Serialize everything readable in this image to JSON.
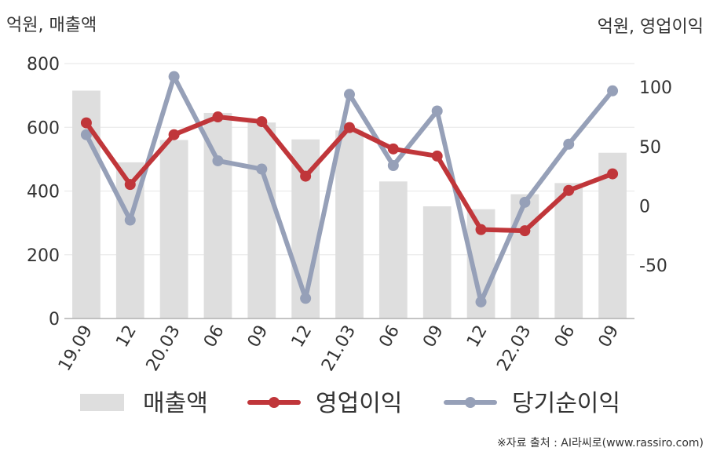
{
  "chart_data": {
    "type": "bar",
    "unit_left": "억원, 매출액",
    "unit_right": "억원, 영업이익",
    "categories": [
      "19.09",
      "12",
      "20.03",
      "06",
      "09",
      "12",
      "21.03",
      "06",
      "09",
      "12",
      "22.03",
      "06",
      "09"
    ],
    "series": [
      {
        "name": "매출액",
        "type": "bar",
        "axis": "left",
        "color": "#dedede",
        "values": [
          715,
          490,
          560,
          645,
          615,
          562,
          590,
          430,
          352,
          343,
          390,
          425,
          520
        ]
      },
      {
        "name": "영업이익",
        "type": "line",
        "axis": "right",
        "color": "#c0363a",
        "values": [
          70,
          18,
          60,
          75,
          71,
          25,
          66,
          48,
          42,
          -20,
          -21,
          13,
          27
        ]
      },
      {
        "name": "당기순이익",
        "type": "line",
        "axis": "right",
        "color": "#96a0b8",
        "values": [
          60,
          -12,
          109,
          38,
          31,
          -78,
          94,
          34,
          80,
          -81,
          3,
          52,
          97
        ]
      }
    ],
    "y_left": {
      "min": 0,
      "max": 800,
      "ticks": [
        0,
        200,
        400,
        600,
        800
      ]
    },
    "y_right": {
      "min": -95,
      "max": 120,
      "ticks": [
        -50,
        0,
        50,
        100
      ]
    },
    "grid": true,
    "legend_position": "bottom"
  },
  "source": "※자료 출처 : AI라씨로(www.rassiro.com)"
}
